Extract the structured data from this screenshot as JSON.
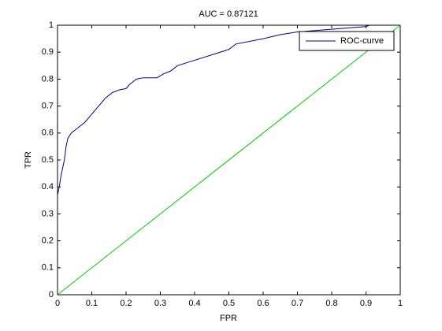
{
  "chart_data": {
    "type": "line",
    "title": "AUC = 0.87121",
    "xlabel": "FPR",
    "ylabel": "TPR",
    "xlim": [
      0,
      1
    ],
    "ylim": [
      0,
      1
    ],
    "xticks": [
      0,
      0.1,
      0.2,
      0.3,
      0.4,
      0.5,
      0.6,
      0.7,
      0.8,
      0.9,
      1
    ],
    "yticks": [
      0,
      0.1,
      0.2,
      0.3,
      0.4,
      0.5,
      0.6,
      0.7,
      0.8,
      0.9,
      1
    ],
    "legend": "upper right",
    "series": [
      {
        "name": "ROC-curve",
        "color": "#00008b",
        "x": [
          0,
          0.005,
          0.01,
          0.02,
          0.025,
          0.03,
          0.04,
          0.06,
          0.08,
          0.1,
          0.12,
          0.14,
          0.16,
          0.18,
          0.2,
          0.21,
          0.23,
          0.25,
          0.29,
          0.31,
          0.33,
          0.35,
          0.4,
          0.45,
          0.5,
          0.52,
          0.6,
          0.65,
          0.7,
          0.8,
          0.85,
          0.9,
          0.91
        ],
        "values": [
          0.37,
          0.4,
          0.44,
          0.5,
          0.55,
          0.58,
          0.6,
          0.62,
          0.64,
          0.67,
          0.7,
          0.73,
          0.75,
          0.76,
          0.765,
          0.78,
          0.8,
          0.805,
          0.805,
          0.82,
          0.83,
          0.85,
          0.87,
          0.89,
          0.91,
          0.93,
          0.95,
          0.965,
          0.975,
          0.985,
          0.99,
          0.995,
          1
        ]
      },
      {
        "color": "#00cc00",
        "x": [
          0,
          1
        ],
        "values": [
          0,
          1
        ]
      }
    ]
  }
}
